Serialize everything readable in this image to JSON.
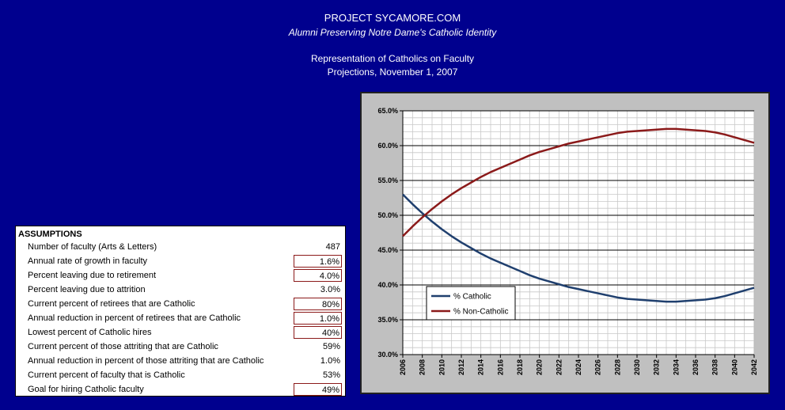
{
  "header": {
    "site": "PROJECT SYCAMORE.COM",
    "tagline": "Alumni Preserving Notre Dame's Catholic Identity",
    "report_title": "Representation of Catholics on Faculty",
    "report_subtitle": "Projections, November 1, 2007"
  },
  "assumptions": {
    "title": "ASSUMPTIONS",
    "rows": [
      {
        "label": "Number of faculty (Arts & Letters)",
        "value": "487",
        "boxed": false
      },
      {
        "label": "Annual rate of growth in faculty",
        "value": "1.6%",
        "boxed": true
      },
      {
        "label": "Percent leaving due to retirement",
        "value": "4.0%",
        "boxed": true
      },
      {
        "label": "Percent leaving due to attrition",
        "value": "3.0%",
        "boxed": false
      },
      {
        "label": "Current percent of retirees that are Catholic",
        "value": "80%",
        "boxed": true
      },
      {
        "label": "Annual reduction in percent of retirees that are Catholic",
        "value": "1.0%",
        "boxed": true
      },
      {
        "label": "Lowest percent of Catholic hires",
        "value": "40%",
        "boxed": true
      },
      {
        "label": "Current percent of those attriting that are Catholic",
        "value": "59%",
        "boxed": false
      },
      {
        "label": "Annual reduction in percent of those attriting that are Catholic",
        "value": "1.0%",
        "boxed": false
      },
      {
        "label": "Current percent of faculty that is Catholic",
        "value": "53%",
        "boxed": false
      },
      {
        "label": "Goal for hiring Catholic faculty",
        "value": "49%",
        "boxed": true
      }
    ]
  },
  "chart_data": {
    "type": "line",
    "title": "",
    "xlabel": "",
    "ylabel": "",
    "ylim": [
      30,
      65
    ],
    "ytick_step": 5,
    "ytick_labels": [
      "30.0%",
      "35.0%",
      "40.0%",
      "45.0%",
      "50.0%",
      "55.0%",
      "60.0%",
      "65.0%"
    ],
    "x": [
      2006,
      2007,
      2008,
      2009,
      2010,
      2011,
      2012,
      2013,
      2014,
      2015,
      2016,
      2017,
      2018,
      2019,
      2020,
      2021,
      2022,
      2023,
      2024,
      2025,
      2026,
      2027,
      2028,
      2029,
      2030,
      2031,
      2032,
      2033,
      2034,
      2035,
      2036,
      2037,
      2038,
      2039,
      2040,
      2041,
      2042
    ],
    "xtick_labels": [
      "2006",
      "2008",
      "2010",
      "2012",
      "2014",
      "2016",
      "2018",
      "2020",
      "2022",
      "2024",
      "2026",
      "2028",
      "2030",
      "2032",
      "2034",
      "2036",
      "2038",
      "2040",
      "2042"
    ],
    "grid": true,
    "legend_position": "bottom-left",
    "series": [
      {
        "name": "% Catholic",
        "color": "#1f3f6e",
        "values": [
          53.0,
          51.6,
          50.3,
          49.1,
          48.0,
          47.0,
          46.1,
          45.3,
          44.5,
          43.8,
          43.2,
          42.6,
          42.0,
          41.4,
          40.9,
          40.5,
          40.1,
          39.7,
          39.4,
          39.1,
          38.8,
          38.5,
          38.2,
          38.0,
          37.9,
          37.8,
          37.7,
          37.6,
          37.6,
          37.7,
          37.8,
          37.9,
          38.1,
          38.4,
          38.8,
          39.2,
          39.6
        ]
      },
      {
        "name": "% Non-Catholic",
        "color": "#8b1a1a",
        "values": [
          47.0,
          48.4,
          49.7,
          50.9,
          52.0,
          53.0,
          53.9,
          54.7,
          55.5,
          56.2,
          56.8,
          57.4,
          58.0,
          58.6,
          59.1,
          59.5,
          59.9,
          60.3,
          60.6,
          60.9,
          61.2,
          61.5,
          61.8,
          62.0,
          62.1,
          62.2,
          62.3,
          62.4,
          62.4,
          62.3,
          62.2,
          62.1,
          61.9,
          61.6,
          61.2,
          60.8,
          60.4
        ]
      }
    ]
  }
}
